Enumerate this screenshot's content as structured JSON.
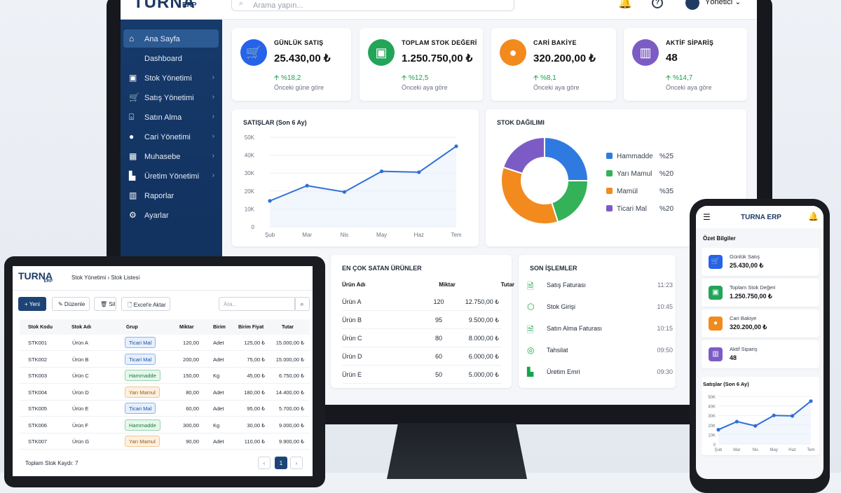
{
  "monitor": {
    "logo": "TURNA",
    "logo_sub": "ERP",
    "search_placeholder": "Arama yapın...",
    "user": "Yönetici ⌄",
    "sidebar": [
      {
        "label": "Ana Sayfa",
        "icon": "home-icon",
        "glyph": "⌂",
        "active": true,
        "chev": false
      },
      {
        "label": "Dashboard",
        "icon": "",
        "glyph": "",
        "active": false,
        "chev": false
      },
      {
        "label": "Stok Yönetimi",
        "icon": "box-icon",
        "glyph": "▣",
        "active": false,
        "chev": true
      },
      {
        "label": "Satış Yönetimi",
        "icon": "cart-icon",
        "glyph": "🛒",
        "active": false,
        "chev": true
      },
      {
        "label": "Satın Alma",
        "icon": "basket-icon",
        "glyph": "⌺",
        "active": false,
        "chev": true
      },
      {
        "label": "Cari Yönetimi",
        "icon": "user-icon",
        "glyph": "●",
        "active": false,
        "chev": true
      },
      {
        "label": "Muhasebe",
        "icon": "calculator-icon",
        "glyph": "▦",
        "active": false,
        "chev": true
      },
      {
        "label": "Üretim Yönetimi",
        "icon": "factory-icon",
        "glyph": "▙",
        "active": false,
        "chev": true
      },
      {
        "label": "Raporlar",
        "icon": "report-icon",
        "glyph": "▥",
        "active": false,
        "chev": false
      },
      {
        "label": "Ayarlar",
        "icon": "gear-icon",
        "glyph": "⚙",
        "active": false,
        "chev": false
      }
    ],
    "kpis": [
      {
        "title": "GÜNLÜK SATIŞ",
        "value": "25.430,00 ₺",
        "delta": "🡩 %18,2",
        "sub": "Önceki güne göre",
        "color": "#2563eb",
        "glyph": "🛒",
        "icon": "cart-icon"
      },
      {
        "title": "TOPLAM STOK DEĞERİ",
        "value": "1.250.750,00 ₺",
        "delta": "🡩 %12,5",
        "sub": "Önceki aya göre",
        "color": "#22a559",
        "glyph": "▣",
        "icon": "box-icon"
      },
      {
        "title": "CARİ BAKİYE",
        "value": "320.200,00 ₺",
        "delta": "🡩 %8,1",
        "sub": "Önceki aya göre",
        "color": "#f28a1e",
        "glyph": "●",
        "icon": "user-icon"
      },
      {
        "title": "AKTİF SİPARİŞ",
        "value": "48",
        "delta": "🡩 %14,7",
        "sub": "Önceki aya göre",
        "color": "#7c5cc4",
        "glyph": "▥",
        "icon": "chart-icon"
      }
    ],
    "sales_title": "SATIŞLAR (Son 6 Ay)",
    "stock_title": "STOK DAĞILIMI",
    "top_title": "EN ÇOK SATAN ÜRÜNLER",
    "top_headers": [
      "Ürün Adı",
      "Miktar",
      "Tutar"
    ],
    "top_rows": [
      [
        "Ürün A",
        "120",
        "12.750,00 ₺"
      ],
      [
        "Ürün B",
        "95",
        "9.500,00 ₺"
      ],
      [
        "Ürün C",
        "80",
        "8.000,00 ₺"
      ],
      [
        "Ürün D",
        "60",
        "6.000,00 ₺"
      ],
      [
        "Ürün E",
        "50",
        "5.000,00 ₺"
      ]
    ],
    "tx_title": "SON İŞLEMLER",
    "tx_rows": [
      {
        "label": "Satış Faturası",
        "time": "11:23",
        "icon": "invoice-icon",
        "glyph": "🗎"
      },
      {
        "label": "Stok Girişi",
        "time": "10:45",
        "icon": "box-icon",
        "glyph": "⬡"
      },
      {
        "label": "Satın Alma Faturası",
        "time": "10:15",
        "icon": "invoice-icon",
        "glyph": "🗎"
      },
      {
        "label": "Tahsilat",
        "time": "09:50",
        "icon": "money-icon",
        "glyph": "◎"
      },
      {
        "label": "Üretim Emri",
        "time": "09:30",
        "icon": "factory-icon",
        "glyph": "▙"
      }
    ]
  },
  "chart_data": [
    {
      "type": "line",
      "title": "SATIŞLAR (Son 6 Ay)",
      "categories": [
        "Şub",
        "Mar",
        "Nis",
        "May",
        "Haz",
        "Tem"
      ],
      "values": [
        14500,
        23000,
        19500,
        31000,
        30500,
        45000
      ],
      "yticks": [
        "0",
        "10K",
        "20K",
        "30K",
        "40K",
        "50K"
      ],
      "ylim": [
        0,
        50000
      ],
      "grid": true,
      "color": "#2f6fd6"
    },
    {
      "type": "pie",
      "title": "STOK DAĞILIMI",
      "labels": [
        "Hammadde",
        "Yarı Mamul",
        "Mamül",
        "Ticari Mal"
      ],
      "values": [
        25,
        20,
        35,
        20
      ],
      "pct_labels": [
        "%25",
        "%20",
        "%35",
        "%20"
      ],
      "colors": [
        "#2f7ae0",
        "#34b25a",
        "#f28a1e",
        "#7c5cc4"
      ],
      "legend": "right"
    },
    {
      "type": "line",
      "title": "Satışlar (Son 6 Ay)",
      "categories": [
        "Şub",
        "Mar",
        "Nis",
        "May",
        "Haz",
        "Tem"
      ],
      "values": [
        15000,
        23500,
        19000,
        30000,
        29500,
        45000
      ],
      "yticks": [
        "0",
        "10K",
        "20K",
        "30K",
        "40K",
        "50K"
      ],
      "ylim": [
        0,
        50000
      ],
      "grid": true,
      "color": "#2f6fd6"
    }
  ],
  "tablet": {
    "logo": "TURNA",
    "logo_sub": "ERP",
    "breadcrumb": "Stok Yönetimi  ›  Stok Listesi",
    "buttons": [
      {
        "label": "+ Yeni"
      },
      {
        "label": "✎ Düzenle"
      },
      {
        "label": "🗑 Sil"
      },
      {
        "label": "🗋 Excel'e Aktar"
      }
    ],
    "search_placeholder": "Ara...",
    "headers": [
      "Stok Kodu",
      "Stok Adı",
      "Grup",
      "Miktar",
      "Birim",
      "Birim Fiyat",
      "Tutar"
    ],
    "rows": [
      [
        "STK001",
        "Ürün A",
        "Ticari Mal",
        "120,00",
        "Adet",
        "125,00 ₺",
        "15.000,00 ₺"
      ],
      [
        "STK002",
        "Ürün B",
        "Ticari Mal",
        "200,00",
        "Adet",
        "75,00 ₺",
        "15.000,00 ₺"
      ],
      [
        "STK003",
        "Ürün C",
        "Hammadde",
        "150,00",
        "Kg",
        "45,00 ₺",
        "6.750,00 ₺"
      ],
      [
        "STK004",
        "Ürün D",
        "Yarı Mamul",
        "80,00",
        "Adet",
        "180,00 ₺",
        "14.400,00 ₺"
      ],
      [
        "STK005",
        "Ürün E",
        "Ticari Mal",
        "60,00",
        "Adet",
        "95,00 ₺",
        "5.700,00 ₺"
      ],
      [
        "STK006",
        "Ürün F",
        "Hammadde",
        "300,00",
        "Kg",
        "30,00 ₺",
        "9.000,00 ₺"
      ],
      [
        "STK007",
        "Ürün G",
        "Yarı Mamul",
        "90,00",
        "Adet",
        "110,00 ₺",
        "9.900,00 ₺"
      ]
    ],
    "group_colors": {
      "Ticari Mal": [
        "#e6f0fd",
        "#8fb4ea",
        "#1e4f9c"
      ],
      "Hammadde": [
        "#e6f7ec",
        "#94d4aa",
        "#1d7a3f"
      ],
      "Yarı Mamul": [
        "#fdf0e0",
        "#f2c58f",
        "#9a5a10"
      ]
    },
    "footer": "Toplam Stok Kaydı: 7",
    "pager": [
      "‹",
      "1",
      "›"
    ]
  },
  "phone": {
    "logo": "TURNA ERP",
    "section": "Özet Bilgiler",
    "kpis": [
      {
        "title": "Günlük Satış",
        "value": "25.430,00 ₺",
        "color": "#2563eb",
        "glyph": "🛒",
        "icon": "cart-icon"
      },
      {
        "title": "Toplam Stok Değeri",
        "value": "1.250.750,00 ₺",
        "color": "#22a559",
        "glyph": "▣",
        "icon": "box-icon"
      },
      {
        "title": "Cari Bakiye",
        "value": "320.200,00 ₺",
        "color": "#f28a1e",
        "glyph": "●",
        "icon": "user-icon"
      },
      {
        "title": "Aktif Sipariş",
        "value": "48",
        "color": "#7c5cc4",
        "glyph": "▥",
        "icon": "chart-icon"
      }
    ],
    "chart_title": "Satışlar (Son 6 Ay)"
  }
}
